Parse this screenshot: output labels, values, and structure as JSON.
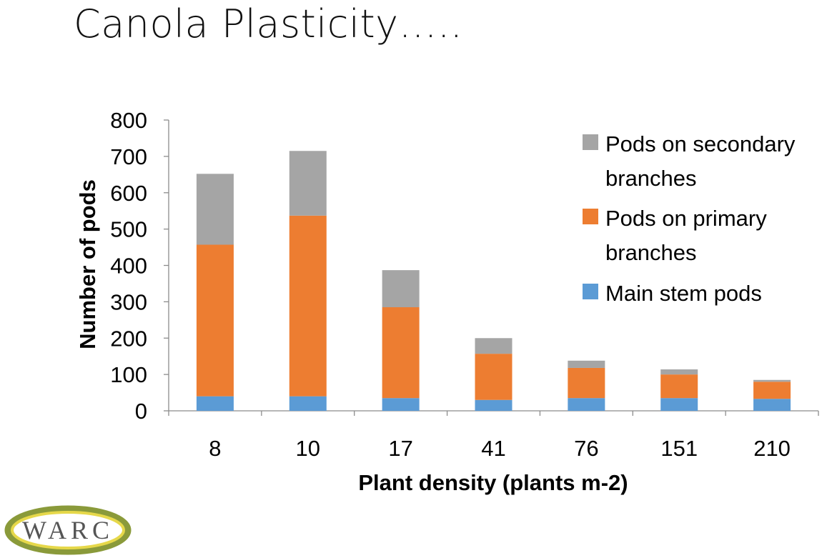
{
  "slide": {
    "title": "Canola Plasticity….."
  },
  "logo": {
    "text": "WARC"
  },
  "chart_data": {
    "type": "bar",
    "stacked": true,
    "categories": [
      "8",
      "10",
      "17",
      "41",
      "76",
      "151",
      "210"
    ],
    "series": [
      {
        "name": "Main stem pods",
        "color": "#5B9BD5",
        "values": [
          40,
          40,
          35,
          30,
          35,
          35,
          33
        ]
      },
      {
        "name": "Pods on primary branches",
        "color": "#ED7D31",
        "values": [
          417,
          497,
          250,
          127,
          83,
          65,
          47
        ]
      },
      {
        "name": "Pods on secondary branches",
        "color": "#A5A5A5",
        "values": [
          195,
          178,
          102,
          43,
          20,
          14,
          5
        ]
      }
    ],
    "legend": {
      "position": "right",
      "lines": [
        [
          "Pods on secondary",
          "branches"
        ],
        [
          "Pods on primary",
          "branches"
        ],
        [
          "Main stem pods"
        ]
      ]
    },
    "xlabel": "Plant density (plants m-2)",
    "ylabel": "Number of pods",
    "ylim": [
      0,
      800
    ],
    "yticks": [
      "0",
      "100",
      "200",
      "300",
      "400",
      "500",
      "600",
      "700",
      "800"
    ],
    "grid": false
  }
}
